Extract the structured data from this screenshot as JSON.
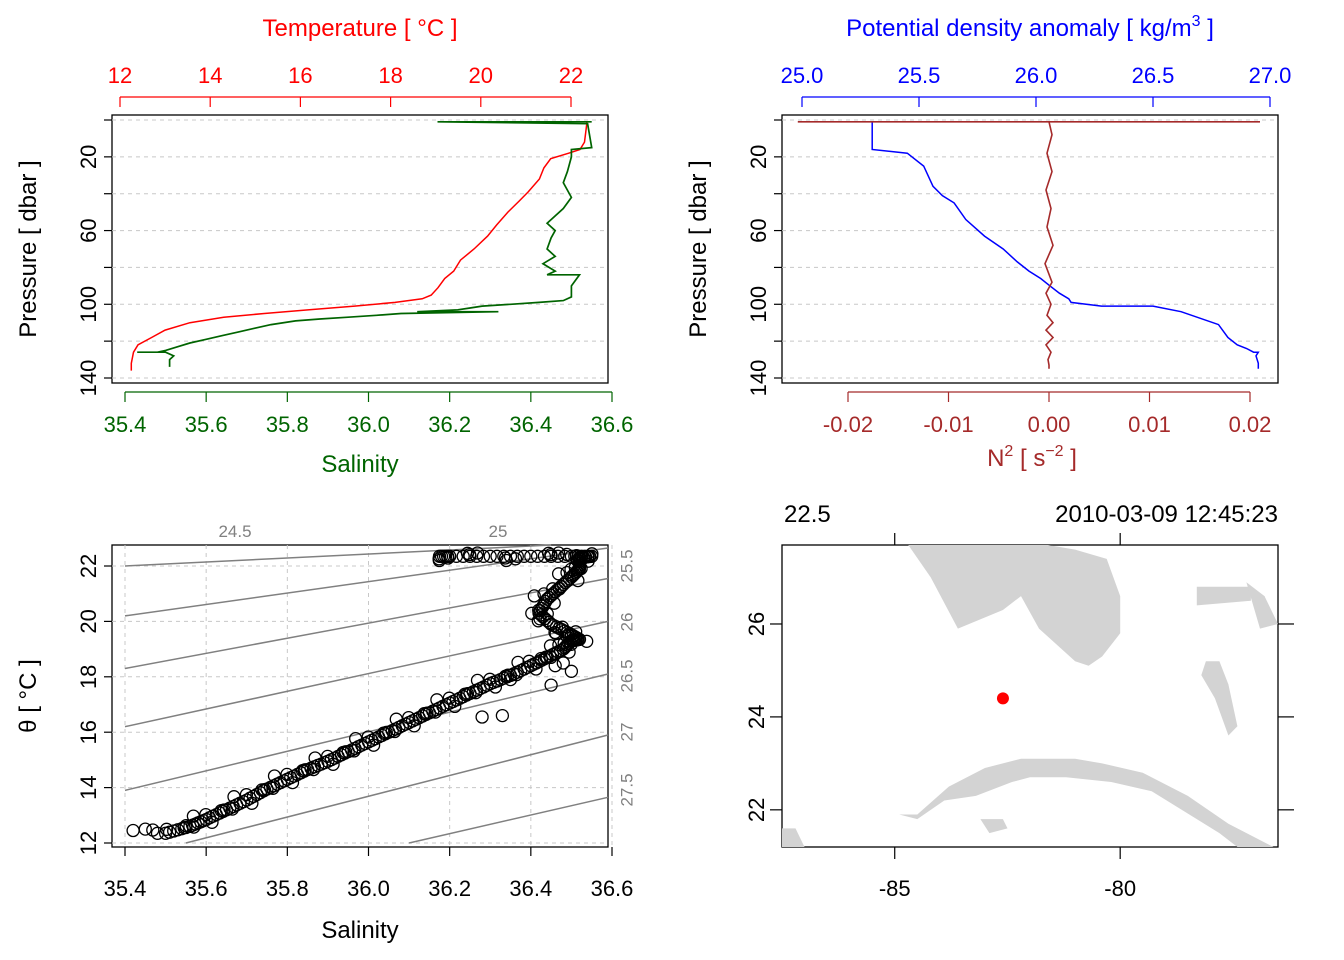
{
  "colors": {
    "temperature": "#ff0000",
    "salinity": "#006400",
    "density": "#0000ff",
    "n2": "#a52a2a",
    "isopycnal": "#808080",
    "land": "#d3d3d3",
    "station": "#ff0000",
    "grid": "#c8c8c8"
  },
  "chart_data": [
    {
      "type": "line",
      "panel": "ts-profile",
      "title": "Temperature [ °C ]",
      "xlabel_top": "Temperature [ °C ]",
      "xlabel_bottom": "Salinity",
      "ylabel": "Pressure [ dbar ]",
      "x_top_ticks": [
        "12",
        "14",
        "16",
        "18",
        "20",
        "22"
      ],
      "x_top_range": [
        12,
        22
      ],
      "x_bottom_ticks": [
        "35.4",
        "35.6",
        "35.8",
        "36.0",
        "36.2",
        "36.4",
        "36.6"
      ],
      "x_bottom_range": [
        35.4,
        36.6
      ],
      "y_ticks": [
        "20",
        "60",
        "100",
        "140"
      ],
      "y_range": [
        140,
        0
      ],
      "series": [
        {
          "name": "Temperature",
          "color_key": "temperature",
          "axis": "top",
          "x": [
            22.35,
            22.35,
            22.3,
            22.2,
            21.95,
            21.55,
            21.4,
            21.3,
            21.05,
            20.85,
            20.6,
            20.35,
            20.15,
            19.85,
            19.55,
            19.4,
            19.2,
            19.05,
            18.9,
            18.7,
            18.1,
            17.2,
            16.2,
            15.2,
            14.3,
            13.55,
            13.0,
            12.7,
            12.4,
            12.3,
            12.25,
            12.25
          ],
          "y": [
            1,
            2,
            12,
            16,
            18,
            21,
            26,
            32,
            39,
            44,
            50,
            57,
            63,
            70,
            76,
            82,
            86,
            91,
            95,
            97,
            99,
            101,
            103,
            105,
            107,
            110,
            114,
            118,
            122,
            126,
            132,
            136
          ]
        },
        {
          "name": "Salinity",
          "color_key": "salinity",
          "axis": "bottom",
          "x": [
            36.55,
            36.17,
            36.54,
            36.55,
            36.5,
            36.5,
            36.49,
            36.48,
            36.5,
            36.48,
            36.44,
            36.46,
            36.45,
            36.44,
            36.46,
            36.43,
            36.46,
            36.44,
            36.52,
            36.5,
            36.5,
            36.48,
            36.42,
            36.35,
            36.28,
            36.25,
            36.22,
            36.12,
            36.32,
            36.08,
            36.02,
            35.95,
            35.88,
            35.82,
            35.76,
            35.72,
            35.68,
            35.64,
            35.6,
            35.56,
            35.53,
            35.5,
            35.48,
            35.46,
            35.43,
            35.5,
            35.52,
            35.51,
            35.51
          ],
          "y": [
            1,
            1,
            2,
            15,
            16,
            20,
            28,
            34,
            42,
            48,
            56,
            60,
            64,
            70,
            74,
            78,
            82,
            84,
            84,
            90,
            96,
            98,
            99,
            100,
            101,
            102,
            103,
            104,
            104,
            105,
            106,
            107,
            108,
            109,
            111,
            113,
            115,
            117,
            119,
            121,
            123,
            125,
            126,
            126,
            126,
            126,
            128,
            130,
            134
          ]
        }
      ]
    },
    {
      "type": "line",
      "panel": "density-profile",
      "title": "Potential density anomaly [ kg/m3 ]",
      "xlabel_top": "Potential density anomaly [ kg/m",
      "xlabel_top_sup": "3",
      "xlabel_top_end": " ]",
      "xlabel_bottom": "N",
      "xlabel_bottom_sup": "2",
      "xlabel_bottom_mid": " [ s",
      "xlabel_bottom_sup2": "−2",
      "xlabel_bottom_end": " ]",
      "ylabel": "Pressure [ dbar ]",
      "x_top_ticks": [
        "25.0",
        "25.5",
        "26.0",
        "26.5",
        "27.0"
      ],
      "x_top_range": [
        25.0,
        27.0
      ],
      "x_bottom_ticks": [
        "-0.02",
        "-0.01",
        "0.00",
        "0.01",
        "0.02"
      ],
      "x_bottom_range": [
        -0.02,
        0.02
      ],
      "y_ticks": [
        "20",
        "60",
        "100",
        "140"
      ],
      "y_range": [
        140,
        0
      ],
      "series": [
        {
          "name": "Potential density anomaly",
          "color_key": "density",
          "axis": "top",
          "x": [
            25.0,
            25.3,
            25.3,
            25.3,
            25.45,
            25.52,
            25.56,
            25.6,
            25.65,
            25.7,
            25.78,
            25.86,
            25.92,
            25.97,
            26.02,
            26.06,
            26.1,
            26.14,
            26.15,
            26.28,
            26.5,
            26.62,
            26.78,
            26.82,
            26.86,
            26.9,
            26.93,
            26.95,
            26.94,
            26.95,
            26.95
          ],
          "y": [
            1,
            1,
            14,
            16,
            18,
            25,
            36,
            41,
            45,
            54,
            63,
            70,
            77,
            82,
            86,
            90,
            94,
            97,
            99,
            101,
            101,
            104,
            111,
            118,
            122,
            124,
            126,
            126,
            128,
            132,
            135
          ]
        },
        {
          "name": "N2",
          "color_key": "n2",
          "axis": "bottom",
          "x": [
            -0.025,
            0.0,
            0.021,
            0.0,
            0.0003,
            -0.0002,
            0.0003,
            -0.0003,
            0.0002,
            -0.0002,
            0.0004,
            -0.0004,
            0.0003,
            -0.0003,
            0.0002,
            -0.0002,
            0.0004,
            -0.0003,
            0.0004,
            -0.0003,
            0.0002,
            -0.0001,
            0.0,
            0.0
          ],
          "y": [
            1,
            1,
            1,
            1,
            8,
            18,
            28,
            38,
            48,
            58,
            68,
            78,
            88,
            94,
            100,
            106,
            110,
            114,
            118,
            122,
            126,
            130,
            133,
            135
          ]
        }
      ]
    },
    {
      "type": "scatter",
      "panel": "ts-diagram",
      "xlabel": "Salinity",
      "ylabel": "θ [ °C ]",
      "x_ticks": [
        "35.4",
        "35.6",
        "35.8",
        "36.0",
        "36.2",
        "36.4",
        "36.6"
      ],
      "x_range": [
        35.4,
        36.6
      ],
      "y_ticks": [
        "12",
        "14",
        "16",
        "18",
        "20",
        "22"
      ],
      "y_range": [
        12,
        22
      ],
      "isopycnal_labels": [
        "24.5",
        "25",
        "25.5",
        "26",
        "26.5",
        "27",
        "27.5"
      ],
      "isopycnal_levels": [
        24.5,
        25,
        25.5,
        26,
        26.5,
        27,
        27.5
      ],
      "trace": {
        "salinity": [
          35.5,
          35.56,
          35.6,
          35.65,
          35.7,
          35.75,
          35.8,
          35.85,
          35.9,
          35.95,
          36.0,
          36.05,
          36.1,
          36.15,
          36.2,
          36.25,
          36.3,
          36.35,
          36.4,
          36.44,
          36.48,
          36.5,
          36.52,
          36.49,
          36.45,
          36.42,
          36.44,
          36.47,
          36.5,
          36.52,
          36.52,
          36.55,
          36.5,
          36.4,
          36.3,
          36.2,
          36.17
        ],
        "theta": [
          12.35,
          12.6,
          12.85,
          13.2,
          13.55,
          13.95,
          14.3,
          14.65,
          14.95,
          15.3,
          15.65,
          16.0,
          16.35,
          16.7,
          17.05,
          17.4,
          17.75,
          18.05,
          18.4,
          18.7,
          19.0,
          19.3,
          19.35,
          19.6,
          19.9,
          20.3,
          20.8,
          21.2,
          21.6,
          21.9,
          22.3,
          22.35,
          22.35,
          22.35,
          22.35,
          22.35,
          22.35
        ]
      },
      "scatter_offsets_salinity": [
        -0.09,
        -0.06,
        -0.05,
        -0.03,
        0.03,
        0.06
      ],
      "scatter_offsets_theta": [
        0.2,
        -0.15,
        0.1,
        -0.25,
        0.18,
        -0.1
      ],
      "outliers": {
        "salinity": [
          35.42,
          35.45,
          35.48,
          36.33,
          36.35,
          36.28,
          36.45,
          36.5,
          36.46,
          36.48
        ],
        "theta": [
          12.45,
          12.5,
          12.35,
          16.6,
          17.9,
          16.55,
          17.7,
          18.2,
          18.4,
          18.5
        ]
      }
    },
    {
      "type": "map",
      "panel": "station-map",
      "top_left_label": "22.5",
      "top_right_label": "2010-03-09 12:45:23",
      "x_ticks": [
        "-85",
        "-80"
      ],
      "x_range": [
        -87.5,
        -76.5
      ],
      "y_ticks": [
        "22",
        "24",
        "26"
      ],
      "y_range": [
        21.2,
        27.7
      ],
      "station": {
        "lon": -82.6,
        "lat": 24.4
      },
      "land": [
        {
          "name": "florida",
          "lon": [
            -84.7,
            -82.6,
            -81.6,
            -81.0,
            -80.3,
            -80.0,
            -80.0,
            -80.4,
            -80.7,
            -81.0,
            -81.8,
            -82.2,
            -82.6,
            -83.6,
            -84.2
          ],
          "lat": [
            27.7,
            27.7,
            27.7,
            27.6,
            27.4,
            26.6,
            25.8,
            25.3,
            25.1,
            25.2,
            25.9,
            26.6,
            26.3,
            25.9,
            27.0
          ]
        },
        {
          "name": "cuba",
          "lon": [
            -84.9,
            -84.5,
            -83.8,
            -83.0,
            -82.2,
            -81.0,
            -80.4,
            -79.5,
            -78.5,
            -77.6,
            -76.6,
            -77.4,
            -77.8,
            -78.3,
            -79.3,
            -80.2,
            -81.2,
            -82.0,
            -82.4,
            -83.2,
            -83.9,
            -84.5
          ],
          "lat": [
            21.9,
            21.9,
            22.5,
            22.9,
            23.1,
            23.1,
            23.0,
            22.8,
            22.3,
            21.7,
            21.2,
            21.2,
            21.5,
            21.8,
            22.4,
            22.6,
            22.7,
            22.7,
            22.6,
            22.3,
            22.2,
            21.8
          ]
        },
        {
          "name": "isla-juventud",
          "lon": [
            -83.1,
            -82.6,
            -82.5,
            -82.9
          ],
          "lat": [
            21.8,
            21.8,
            21.6,
            21.5
          ]
        },
        {
          "name": "bahamas-1",
          "lon": [
            -78.3,
            -77.1,
            -77.1,
            -78.3
          ],
          "lat": [
            26.8,
            26.8,
            26.5,
            26.4
          ]
        },
        {
          "name": "bahamas-2",
          "lon": [
            -77.2,
            -76.8,
            -76.5,
            -76.9
          ],
          "lat": [
            26.9,
            26.6,
            26.0,
            25.9
          ]
        },
        {
          "name": "bahamas-3",
          "lon": [
            -78.1,
            -77.8,
            -77.6,
            -77.4,
            -77.6,
            -77.9,
            -78.2
          ],
          "lat": [
            25.2,
            25.2,
            24.7,
            23.8,
            23.6,
            24.4,
            24.9
          ]
        },
        {
          "name": "yucatan",
          "lon": [
            -87.5,
            -87.2,
            -87.0,
            -87.5
          ],
          "lat": [
            21.6,
            21.6,
            21.2,
            21.2
          ]
        }
      ]
    }
  ]
}
